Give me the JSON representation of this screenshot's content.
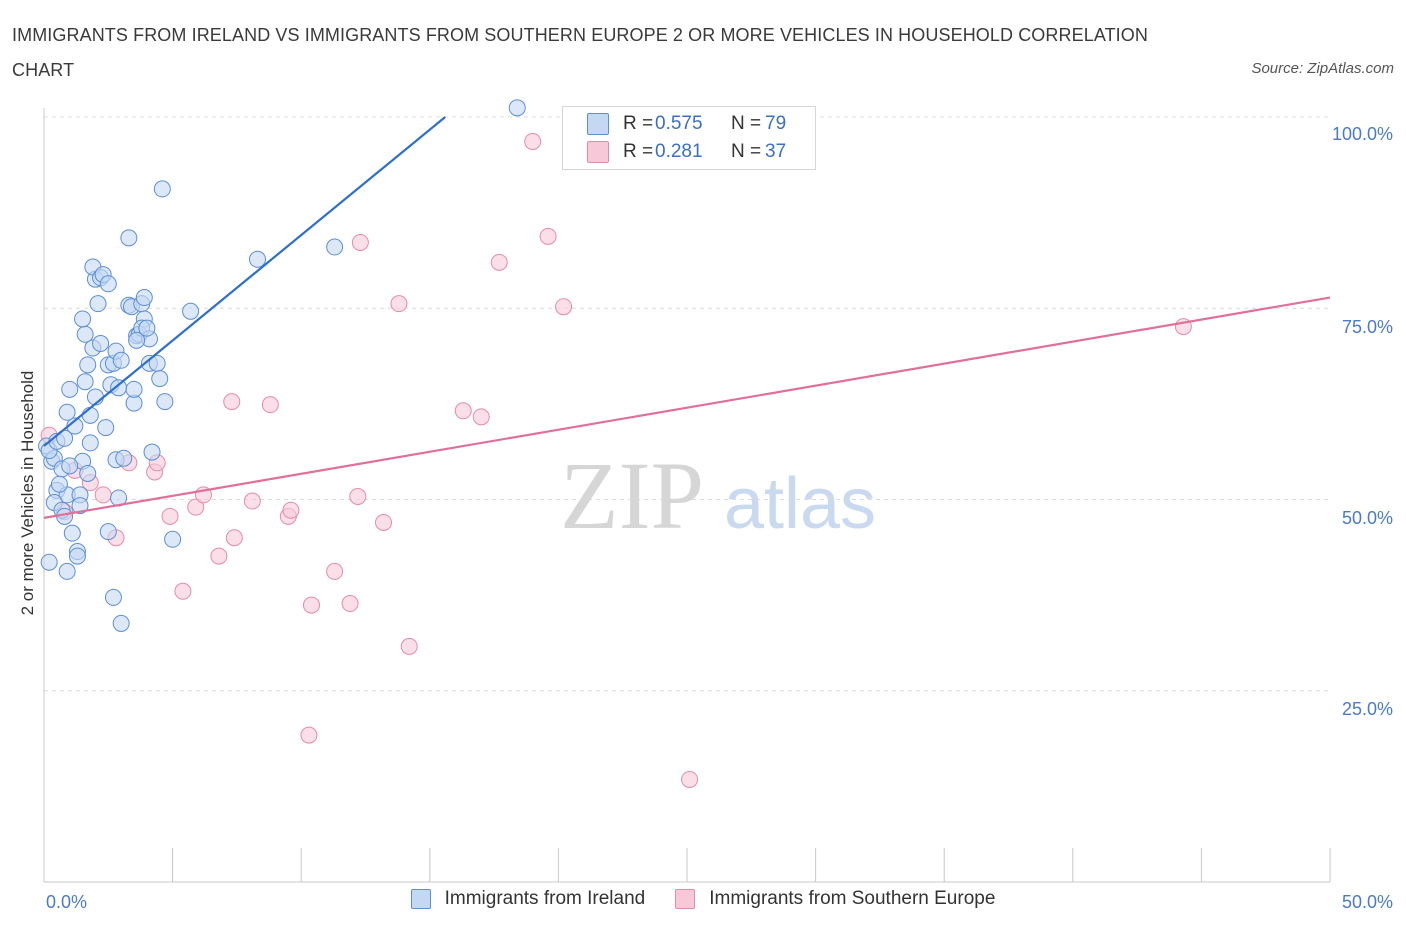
{
  "title": "IMMIGRANTS FROM IRELAND VS IMMIGRANTS FROM SOUTHERN EUROPE 2 OR MORE VEHICLES IN HOUSEHOLD CORRELATION CHART",
  "source": "Source: ZipAtlas.com",
  "watermark": {
    "zip": "ZIP",
    "atlas": "atlas"
  },
  "legend": {
    "rows": [
      {
        "r_label": "R =",
        "r_value": "0.575",
        "n_label": "N =",
        "n_value": "79"
      },
      {
        "r_label": "R =",
        "r_value": "0.281",
        "n_label": "N =",
        "n_value": "37"
      }
    ]
  },
  "chart_data": {
    "type": "scatter",
    "title": "IMMIGRANTS FROM IRELAND VS IMMIGRANTS FROM SOUTHERN EUROPE 2 OR MORE VEHICLES IN HOUSEHOLD CORRELATION CHART",
    "xlabel": "",
    "ylabel": "2 or more Vehicles in Household",
    "xlim": [
      0,
      50
    ],
    "ylim": [
      0,
      100
    ],
    "x_tick_labels": [
      "0.0%",
      "50.0%"
    ],
    "y_tick_labels": [
      "100.0%",
      "75.0%",
      "50.0%",
      "25.0%"
    ],
    "y_ticks": [
      100,
      75,
      50,
      25
    ],
    "grid": true,
    "legend_position": "bottom",
    "colors": {
      "ireland": "#5b8fd6",
      "ireland_fill": "#c4d8f4",
      "ireland_line": "#2d6fcc",
      "southern": "#e58aaa",
      "southern_fill": "#f7c9d8",
      "southern_line": "#e0709a"
    },
    "series": [
      {
        "name": "Immigrants from Ireland",
        "r": 0.575,
        "n": 79,
        "trend": {
          "x0": 0,
          "y0": 57.0,
          "x1": 15.6,
          "y1": 100
        },
        "points": [
          [
            0.1,
            57.0
          ],
          [
            0.3,
            55.0
          ],
          [
            0.4,
            55.4
          ],
          [
            0.2,
            56.4
          ],
          [
            0.5,
            57.6
          ],
          [
            0.8,
            58.0
          ],
          [
            1.2,
            59.6
          ],
          [
            0.9,
            61.4
          ],
          [
            1.0,
            64.4
          ],
          [
            0.7,
            54.0
          ],
          [
            1.5,
            55.0
          ],
          [
            0.5,
            51.2
          ],
          [
            0.9,
            50.6
          ],
          [
            0.4,
            49.6
          ],
          [
            1.4,
            50.6
          ],
          [
            0.7,
            48.6
          ],
          [
            0.8,
            47.8
          ],
          [
            1.1,
            45.6
          ],
          [
            0.2,
            41.8
          ],
          [
            0.9,
            40.6
          ],
          [
            1.3,
            43.2
          ],
          [
            1.3,
            42.6
          ],
          [
            1.7,
            53.4
          ],
          [
            1.8,
            57.4
          ],
          [
            1.8,
            61.0
          ],
          [
            2.0,
            63.4
          ],
          [
            1.6,
            65.4
          ],
          [
            1.7,
            67.6
          ],
          [
            1.9,
            69.8
          ],
          [
            1.6,
            71.6
          ],
          [
            1.5,
            73.6
          ],
          [
            2.1,
            75.6
          ],
          [
            2.0,
            78.8
          ],
          [
            1.9,
            80.4
          ],
          [
            2.2,
            79.0
          ],
          [
            2.3,
            79.4
          ],
          [
            2.5,
            78.2
          ],
          [
            2.4,
            59.4
          ],
          [
            2.6,
            65.0
          ],
          [
            2.5,
            67.6
          ],
          [
            2.7,
            67.8
          ],
          [
            2.8,
            69.4
          ],
          [
            2.9,
            64.6
          ],
          [
            2.8,
            55.2
          ],
          [
            3.0,
            68.2
          ],
          [
            2.9,
            50.2
          ],
          [
            2.5,
            45.8
          ],
          [
            2.7,
            37.2
          ],
          [
            3.0,
            33.8
          ],
          [
            3.3,
            84.2
          ],
          [
            3.3,
            75.4
          ],
          [
            3.4,
            75.2
          ],
          [
            3.5,
            62.6
          ],
          [
            3.5,
            64.4
          ],
          [
            3.6,
            71.4
          ],
          [
            3.7,
            71.6
          ],
          [
            3.8,
            75.6
          ],
          [
            3.9,
            73.6
          ],
          [
            3.8,
            72.4
          ],
          [
            3.9,
            76.4
          ],
          [
            4.1,
            67.8
          ],
          [
            4.1,
            71.0
          ],
          [
            4.4,
            67.8
          ],
          [
            4.5,
            65.8
          ],
          [
            4.2,
            56.2
          ],
          [
            4.7,
            62.8
          ],
          [
            4.6,
            90.6
          ],
          [
            5.0,
            44.8
          ],
          [
            5.7,
            74.6
          ],
          [
            8.3,
            81.4
          ],
          [
            11.3,
            83.0
          ],
          [
            18.4,
            101.2
          ],
          [
            3.1,
            55.4
          ],
          [
            1.0,
            54.4
          ],
          [
            0.6,
            52.0
          ],
          [
            3.6,
            70.8
          ],
          [
            2.2,
            70.4
          ],
          [
            1.4,
            49.2
          ],
          [
            4.0,
            72.4
          ]
        ]
      },
      {
        "name": "Immigrants from Southern Europe",
        "r": 0.281,
        "n": 37,
        "trend": {
          "x0": 0,
          "y0": 47.6,
          "x1": 50,
          "y1": 76.4
        },
        "points": [
          [
            0.2,
            58.4
          ],
          [
            0.8,
            48.4
          ],
          [
            1.2,
            53.8
          ],
          [
            1.8,
            52.2
          ],
          [
            2.3,
            50.6
          ],
          [
            2.8,
            45.0
          ],
          [
            3.3,
            54.8
          ],
          [
            4.3,
            53.6
          ],
          [
            4.4,
            54.8
          ],
          [
            4.9,
            47.8
          ],
          [
            5.4,
            38.0
          ],
          [
            5.9,
            49.0
          ],
          [
            6.2,
            50.6
          ],
          [
            6.8,
            42.6
          ],
          [
            7.4,
            45.0
          ],
          [
            7.3,
            62.8
          ],
          [
            8.1,
            49.8
          ],
          [
            8.8,
            62.4
          ],
          [
            9.5,
            47.8
          ],
          [
            9.6,
            48.6
          ],
          [
            10.4,
            36.2
          ],
          [
            10.3,
            19.2
          ],
          [
            11.3,
            40.6
          ],
          [
            11.9,
            36.4
          ],
          [
            12.2,
            50.4
          ],
          [
            12.3,
            83.6
          ],
          [
            13.2,
            47.0
          ],
          [
            13.8,
            75.6
          ],
          [
            14.2,
            30.8
          ],
          [
            16.3,
            61.6
          ],
          [
            17.0,
            60.8
          ],
          [
            17.7,
            81.0
          ],
          [
            19.0,
            96.8
          ],
          [
            19.6,
            84.4
          ],
          [
            20.2,
            75.2
          ],
          [
            25.1,
            13.4
          ],
          [
            44.3,
            72.6
          ]
        ]
      }
    ]
  }
}
